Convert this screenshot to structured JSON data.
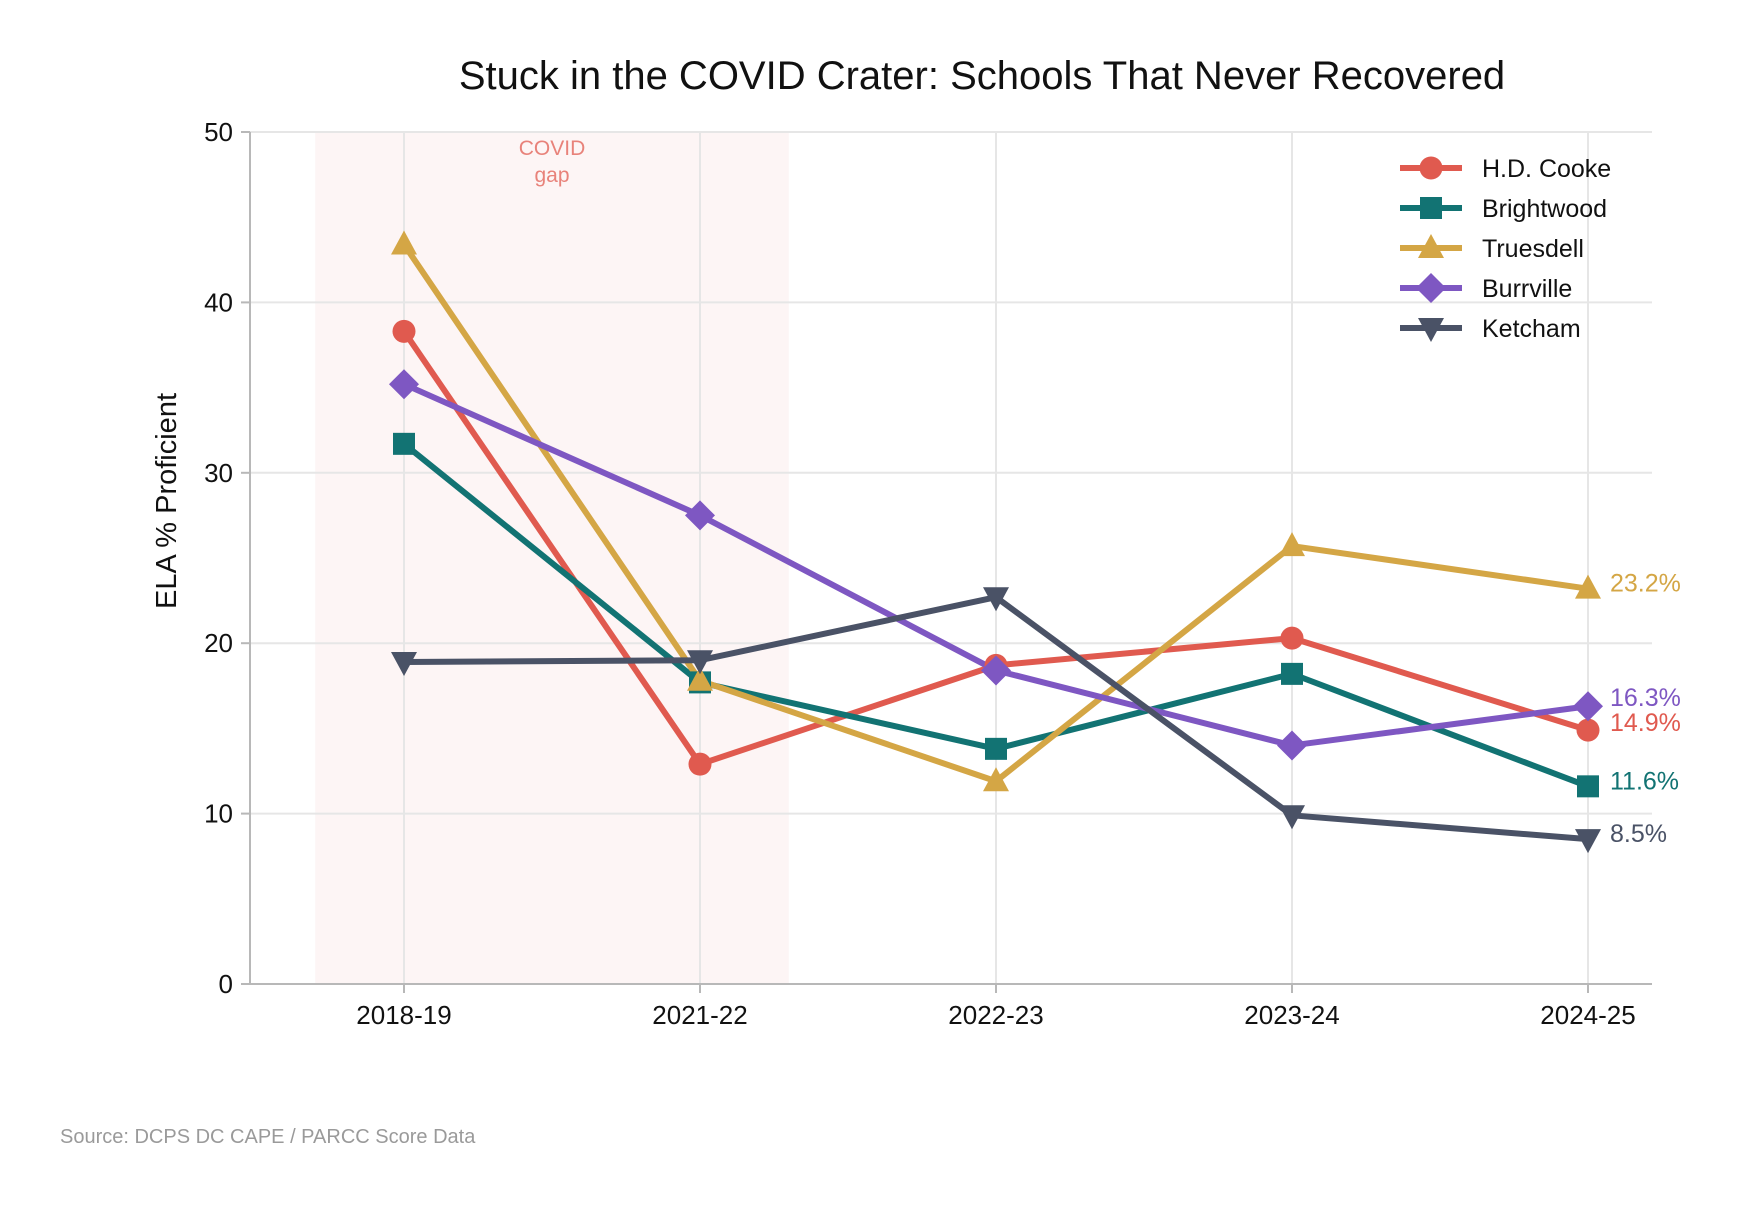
{
  "chart_data": {
    "type": "line",
    "title": "Stuck in the COVID Crater: Schools That Never Recovered",
    "xlabel": "",
    "ylabel": "ELA % Proficient",
    "categories": [
      "2018-19",
      "2021-22",
      "2022-23",
      "2023-24",
      "2024-25"
    ],
    "ylim": [
      0,
      50
    ],
    "yticks": [
      0,
      10,
      20,
      30,
      40,
      50
    ],
    "grid": true,
    "legend_position": "top-right",
    "shaded_region": {
      "from_category": "2018-19",
      "to_category": "2021-22",
      "label_line1": "COVID",
      "label_line2": "gap",
      "color": "#e8827a"
    },
    "series": [
      {
        "name": "H.D. Cooke",
        "color": "#e05a4f",
        "marker": "circle",
        "values": [
          38.3,
          12.9,
          18.7,
          20.3,
          14.9
        ],
        "end_label": "14.9%"
      },
      {
        "name": "Brightwood",
        "color": "#127373",
        "marker": "square",
        "values": [
          31.7,
          17.7,
          13.8,
          18.2,
          11.6
        ],
        "end_label": "11.6%"
      },
      {
        "name": "Truesdell",
        "color": "#d4a645",
        "marker": "triangle-up",
        "values": [
          43.4,
          17.8,
          11.9,
          25.7,
          23.2
        ],
        "end_label": "23.2%"
      },
      {
        "name": "Burrville",
        "color": "#7e57c2",
        "marker": "diamond",
        "values": [
          35.2,
          27.5,
          18.4,
          14.0,
          16.3
        ],
        "end_label": "16.3%"
      },
      {
        "name": "Ketcham",
        "color": "#4a5266",
        "marker": "triangle-down",
        "values": [
          18.9,
          19.0,
          22.7,
          9.9,
          8.5
        ],
        "end_label": "8.5%"
      }
    ]
  },
  "source_note": "Source: DCPS DC CAPE / PARCC Score Data"
}
